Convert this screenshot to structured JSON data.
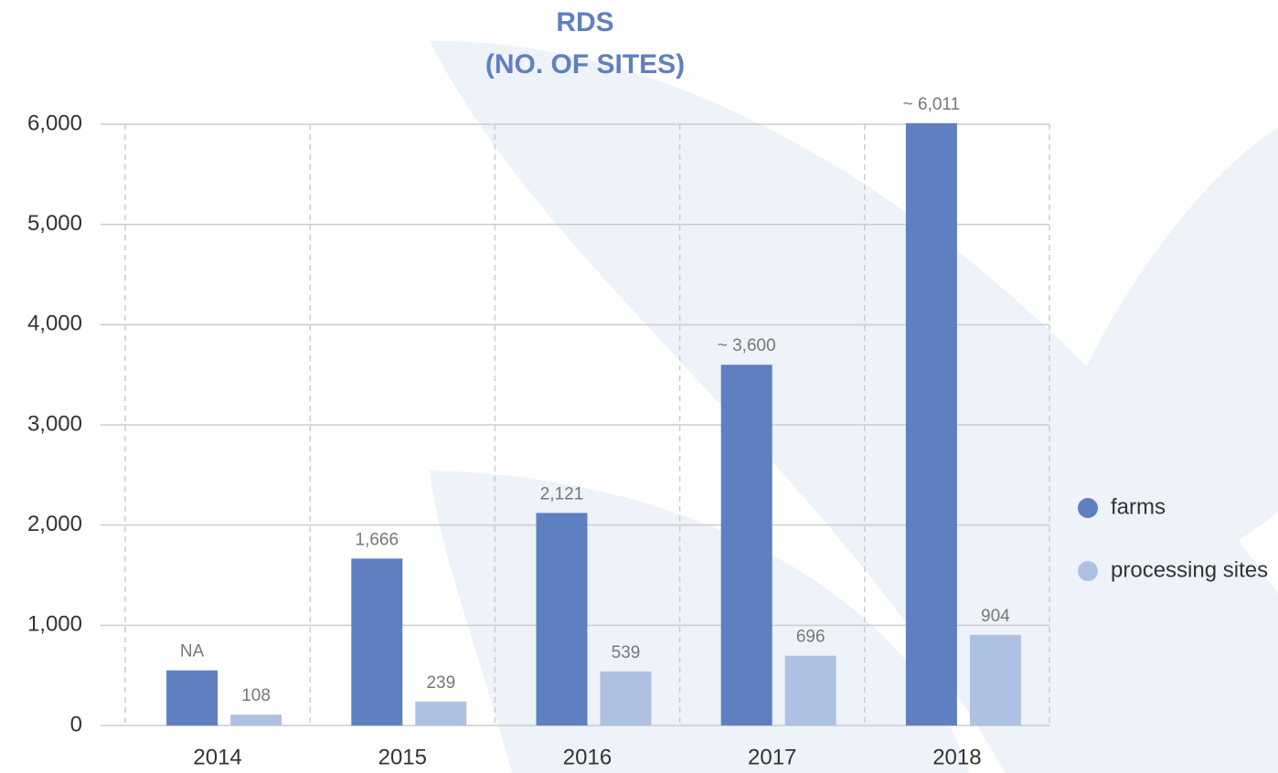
{
  "chart_data": {
    "type": "bar",
    "title": "RDS",
    "subtitle": "(NO. OF SITES)",
    "categories": [
      "2014",
      "2015",
      "2016",
      "2017",
      "2018"
    ],
    "series": [
      {
        "name": "farms",
        "color": "#5f80c0",
        "values": [
          550,
          1666,
          2121,
          3600,
          6011
        ],
        "value_labels": [
          "NA",
          "1,666",
          "2,121",
          "~ 3,600",
          "~ 6,011"
        ]
      },
      {
        "name": "processing sites",
        "color": "#afc1e2",
        "values": [
          108,
          239,
          539,
          696,
          904
        ]
      }
    ],
    "ylim": [
      0,
      6000
    ],
    "yticks": [
      0,
      {
        "value": 1000,
        "label": "1,000"
      },
      {
        "value": 2000,
        "label": "2,000"
      },
      {
        "value": 3000,
        "label": "3,000"
      },
      {
        "value": 4000,
        "label": "4,000"
      },
      {
        "value": 5000,
        "label": "5,000"
      },
      {
        "value": 6000,
        "label": "6,000"
      }
    ],
    "grid": true,
    "legend": "right"
  }
}
